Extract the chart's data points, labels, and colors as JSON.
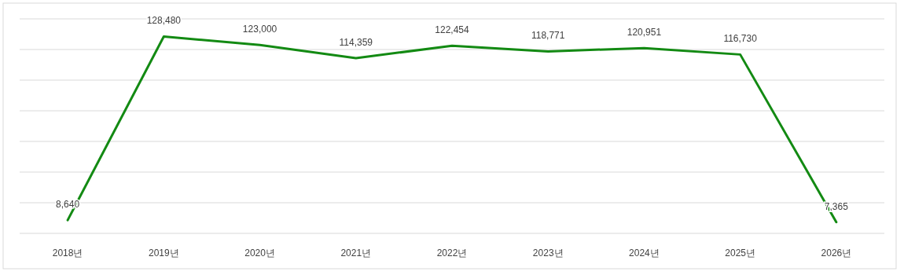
{
  "chart_data": {
    "type": "line",
    "categories": [
      "2018년",
      "2019년",
      "2020년",
      "2021년",
      "2022년",
      "2023년",
      "2024년",
      "2025년",
      "2026년"
    ],
    "series": [
      {
        "color": "#138a13",
        "values": [
          8640,
          128480,
          123000,
          114359,
          122454,
          118771,
          120951,
          116730,
          7365
        ],
        "value_labels": [
          "8,640",
          "128,480",
          "123,000",
          "114,359",
          "122,454",
          "118,771",
          "120,951",
          "116,730",
          "7,365"
        ]
      }
    ],
    "grid": "y",
    "tick_labels": "x"
  }
}
